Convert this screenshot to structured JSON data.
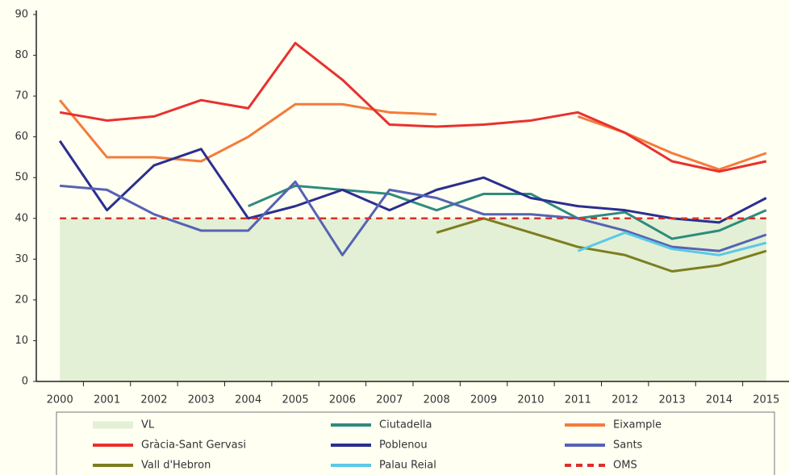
{
  "chart_data": {
    "type": "line",
    "x": [
      2000,
      2001,
      2002,
      2003,
      2004,
      2005,
      2006,
      2007,
      2008,
      2009,
      2010,
      2011,
      2012,
      2013,
      2014,
      2015
    ],
    "xlim": [
      1999.5,
      2015.5
    ],
    "xticks": [
      2000,
      2001,
      2002,
      2003,
      2004,
      2005,
      2006,
      2007,
      2008,
      2009,
      2010,
      2011,
      2012,
      2013,
      2014,
      2015
    ],
    "ylim": [
      0,
      90
    ],
    "yticks": [
      0,
      10,
      20,
      30,
      40,
      50,
      60,
      70,
      80,
      90
    ],
    "grid": false,
    "legend": "bottom",
    "series": [
      {
        "name": "VL",
        "color": "#e3f0d5",
        "area": true,
        "values": [
          40,
          40,
          40,
          40,
          40,
          40,
          40,
          40,
          40,
          40,
          40,
          40,
          40,
          40,
          40,
          40
        ]
      },
      {
        "name": "Ciutadella",
        "color": "#2e8b7f",
        "values": [
          null,
          null,
          null,
          null,
          43,
          48,
          47,
          46,
          42,
          46,
          46,
          40,
          41.5,
          35,
          37,
          42
        ]
      },
      {
        "name": "Eixample",
        "color": "#f47b3a",
        "values": [
          69,
          55,
          55,
          54,
          60,
          68,
          68,
          66,
          65.5,
          null,
          null,
          65,
          61,
          56,
          52,
          56
        ]
      },
      {
        "name": "Gràcia-Sant Gervasi",
        "color": "#e8312f",
        "values": [
          66,
          64,
          65,
          69,
          67,
          83,
          74,
          63,
          62.5,
          63,
          64,
          66,
          61,
          54,
          51.5,
          54
        ]
      },
      {
        "name": "Poblenou",
        "color": "#2b2f8f",
        "values": [
          59,
          42,
          53,
          57,
          40,
          43,
          47,
          42,
          47,
          50,
          45,
          43,
          42,
          40,
          39,
          45
        ]
      },
      {
        "name": "Sants",
        "color": "#5563b3",
        "values": [
          48,
          47,
          41,
          37,
          37,
          49,
          31,
          47,
          45,
          41,
          41,
          40,
          37,
          33,
          32,
          36
        ]
      },
      {
        "name": "Vall d'Hebron",
        "color": "#7d7d1f",
        "values": [
          null,
          null,
          null,
          null,
          null,
          null,
          null,
          null,
          36.5,
          40,
          36.5,
          33,
          31,
          27,
          28.5,
          32
        ]
      },
      {
        "name": "Palau Reial",
        "color": "#5bc8e8",
        "values": [
          null,
          null,
          null,
          null,
          null,
          null,
          null,
          null,
          null,
          null,
          null,
          32,
          36.5,
          32.5,
          31,
          34
        ]
      },
      {
        "name": "OMS",
        "color": "#d9302c",
        "dashed": true,
        "values": [
          40,
          40,
          40,
          40,
          40,
          40,
          40,
          40,
          40,
          40,
          40,
          40,
          40,
          40,
          40,
          40
        ]
      }
    ]
  }
}
